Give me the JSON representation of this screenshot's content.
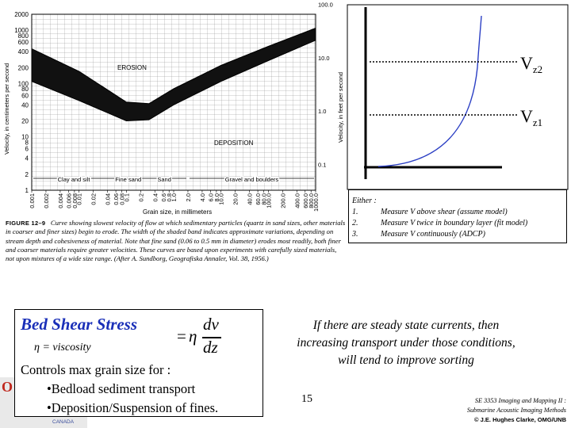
{
  "grain_chart": {
    "y_left_label": "Velocity, in centimeters per second",
    "y_right_label": "Velocity, in feet per second",
    "x_label": "Grain size, in millimeters",
    "y_left_ticks": [
      "2000",
      "1000",
      "800",
      "600",
      "400",
      "200",
      "100",
      "80",
      "60",
      "40",
      "20",
      "10",
      "8",
      "6",
      "4",
      "2",
      "1"
    ],
    "y_right_ticks": [
      "100.0",
      "10.0",
      "1.0",
      "0.1"
    ],
    "x_ticks": [
      "0.001",
      "0.002",
      "0.004",
      "0.006",
      "0.008",
      "0.01",
      "0.02",
      "0.04",
      "0.06",
      "0.08",
      "0.1",
      "0.2",
      "0.4",
      "0.6",
      "0.8",
      "1.0",
      "2.0",
      "4.0",
      "6.0",
      "8.0",
      "10.0",
      "20.0",
      "40.0",
      "60.0",
      "80.0",
      "100.0",
      "200.0",
      "400.0",
      "600.0",
      "800.0",
      "1000.0"
    ],
    "class_labels": [
      "Clay and silt",
      "Fine sand",
      "Sand",
      "Gravel and boulders"
    ],
    "region_labels": {
      "erosion": "EROSION",
      "deposition": "DEPOSITION"
    }
  },
  "chart_data": {
    "type": "area",
    "xlabel": "Grain size, in millimeters",
    "ylabel": "Velocity, in centimeters per second",
    "x_scale": "log",
    "y_scale": "log",
    "xlim": [
      0.001,
      1000
    ],
    "ylim": [
      1,
      2000
    ],
    "series": [
      {
        "name": "EROSION",
        "x": [
          0.001,
          0.01,
          0.1,
          0.3,
          1,
          10,
          100,
          1000
        ],
        "y": [
          450,
          170,
          45,
          42,
          80,
          220,
          500,
          1100
        ]
      },
      {
        "name": "DEPOSITION",
        "x": [
          0.001,
          0.01,
          0.1,
          0.3,
          1,
          10,
          100,
          1000
        ],
        "y": [
          110,
          48,
          20,
          21,
          40,
          110,
          270,
          650
        ]
      }
    ]
  },
  "caption": {
    "figure": "FIGURE 12–9",
    "text": "Curve showing slowest velocity of flow at which sedimentary particles (quartz in sand sizes, other materials in coarser and finer sizes) begin to erode. The width of the shaded band indicates approximate variations, depending on stream depth and cohesiveness of material. Note that fine sand (0.06 to 0.5 mm in diameter) erodes most readily, both finer and coarser materials require greater velocities. These curves are based upon experiments with carefully sized materials, not upon mixtures of a wide size range. (After A. Sundborg, Geografiska Annaler, Vol. 38, 1956.)"
  },
  "profile": {
    "label_vz2_main": "V",
    "label_vz2_sub": "z2",
    "label_vz1_main": "V",
    "label_vz1_sub": "z1"
  },
  "methods": {
    "intro": "Either :",
    "items": [
      {
        "num": "1.",
        "text": "Measure V above shear (assume model)"
      },
      {
        "num": "2.",
        "text": "Measure V twice in boundary layer (fit model)"
      },
      {
        "num": "3.",
        "text": "Measure V continuously (ADCP)"
      }
    ]
  },
  "shear": {
    "title": "Bed  Shear Stress",
    "eq_eq": "=",
    "eq_eta": "η",
    "eq_num": "dv",
    "eq_den": "dz",
    "eta_note": "η = viscosity",
    "controls": "Controls max grain size for :",
    "bullets": [
      "•Bedload sediment transport",
      "•Deposition/Suspension of fines."
    ]
  },
  "steady_text": "If there are steady state currents, then increasing transport under those conditions, will tend to improve sorting",
  "page_number": "15",
  "credit": {
    "line1": "SE 3353 Imaging and Mapping II :",
    "line2": "Submarine Acoustic Imaging Methods",
    "line3": "© J.E. Hughes Clarke, OMG/UNB"
  },
  "logo": {
    "partial": "O",
    "country": "CANADA"
  }
}
